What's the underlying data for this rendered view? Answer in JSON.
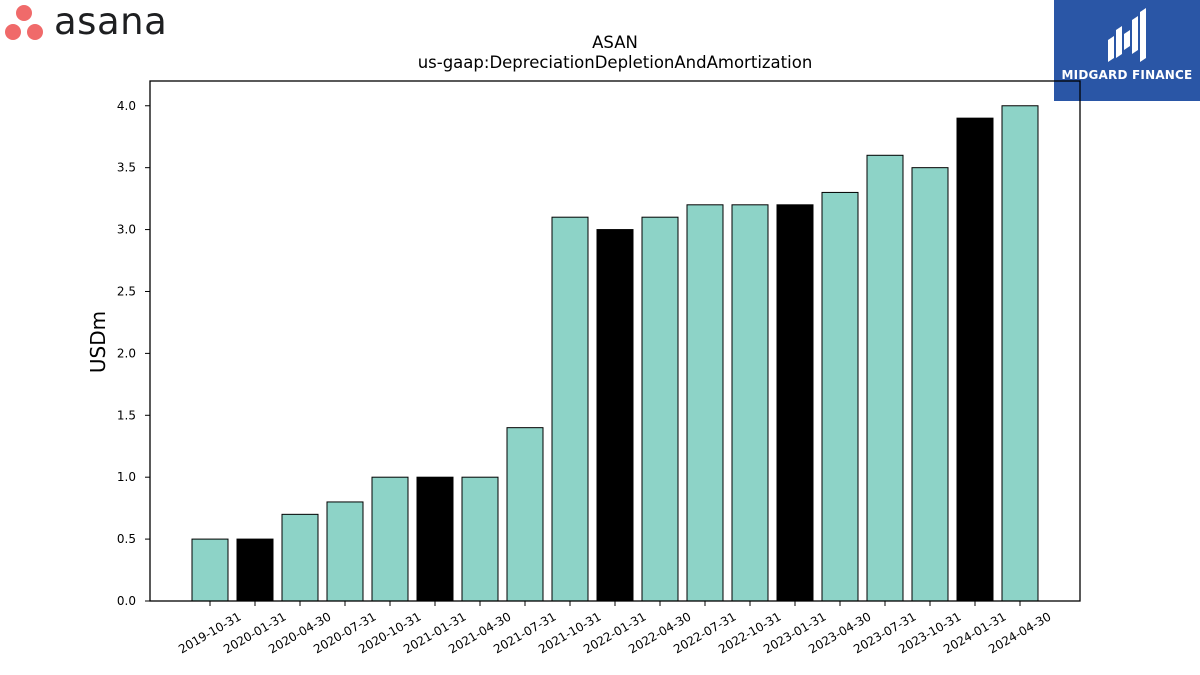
{
  "logos": {
    "asana_text": "asana",
    "asana_dot_color": "#f06a6a",
    "midgard_text": "MIDGARD FINANCE",
    "midgard_bg": "#2a56a6"
  },
  "chart_data": {
    "type": "bar",
    "title": "ASAN",
    "subtitle": "us-gaap:DepreciationDepletionAndAmortization",
    "xlabel": "",
    "ylabel": "USDm",
    "ylim": [
      0,
      4.2
    ],
    "yticks": [
      "0.0",
      "0.5",
      "1.0",
      "1.5",
      "2.0",
      "2.5",
      "3.0",
      "3.5",
      "4.0"
    ],
    "categories": [
      "2019-10-31",
      "2020-01-31",
      "2020-04-30",
      "2020-07-31",
      "2020-10-31",
      "2021-01-31",
      "2021-04-30",
      "2021-07-31",
      "2021-10-31",
      "2022-01-31",
      "2022-04-30",
      "2022-07-31",
      "2022-10-31",
      "2023-01-31",
      "2023-04-30",
      "2023-07-31",
      "2023-10-31",
      "2024-01-31",
      "2024-04-30"
    ],
    "values": [
      0.5,
      0.5,
      0.7,
      0.8,
      1.0,
      1.0,
      1.0,
      1.4,
      3.1,
      3.0,
      3.1,
      3.2,
      3.2,
      3.2,
      3.3,
      3.6,
      3.5,
      3.9,
      4.0
    ],
    "highlight": [
      false,
      true,
      false,
      false,
      false,
      true,
      false,
      false,
      false,
      true,
      false,
      false,
      false,
      true,
      false,
      false,
      false,
      true,
      false
    ],
    "colors": {
      "bar": "#8dd3c7",
      "highlight": "#000000",
      "edge": "#000000"
    },
    "grid": false
  }
}
